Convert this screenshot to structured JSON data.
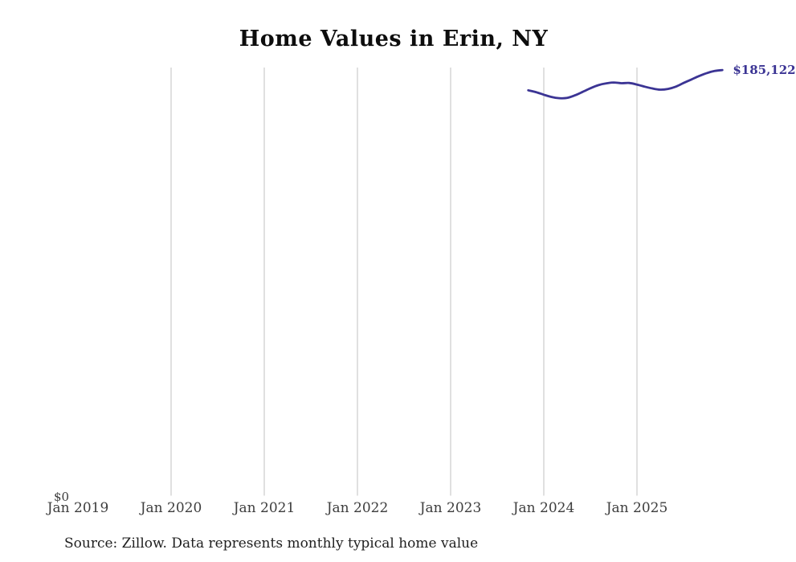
{
  "title": "Home Values in Erin, NY",
  "colors": {
    "line": "#3b3494",
    "end_label_text": "#3b3494",
    "gridline": "#cccccc",
    "tick_text": "#3d3d3d",
    "source_text": "#1f1f1f",
    "title_text": "#0d0d0d",
    "background": "#ffffff"
  },
  "chart_data": {
    "type": "line",
    "title": "Home Values in Erin, NY",
    "source_note": "Source: Zillow. Data represents monthly typical home value",
    "end_label": "$185,122",
    "x": [
      "2023-11",
      "2023-12",
      "2024-01",
      "2024-02",
      "2024-03",
      "2024-04",
      "2024-05",
      "2024-06",
      "2024-07",
      "2024-08",
      "2024-09",
      "2024-10",
      "2024-11",
      "2024-12",
      "2025-01",
      "2025-02",
      "2025-03",
      "2025-04",
      "2025-05",
      "2025-06",
      "2025-07",
      "2025-08",
      "2025-09",
      "2025-10",
      "2025-11",
      "2025-12"
    ],
    "series": [
      {
        "name": "Monthly typical home value",
        "values": [
          176300,
          175500,
          174400,
          173400,
          172900,
          173000,
          174100,
          175600,
          177200,
          178500,
          179300,
          179700,
          179400,
          179500,
          178800,
          177900,
          177100,
          176600,
          176900,
          177900,
          179500,
          181000,
          182500,
          183800,
          184700,
          185122
        ]
      }
    ],
    "x_tick_labels": [
      "Jan 2019",
      "Jan 2020",
      "Jan 2021",
      "Jan 2022",
      "Jan 2023",
      "Jan 2024",
      "Jan 2025"
    ],
    "y_tick_labels": [
      "$0"
    ],
    "ylim": [
      0,
      186200
    ],
    "xlim_months": [
      "2019-01",
      "2026-02"
    ],
    "grid": "vertical-only",
    "legend": false
  }
}
